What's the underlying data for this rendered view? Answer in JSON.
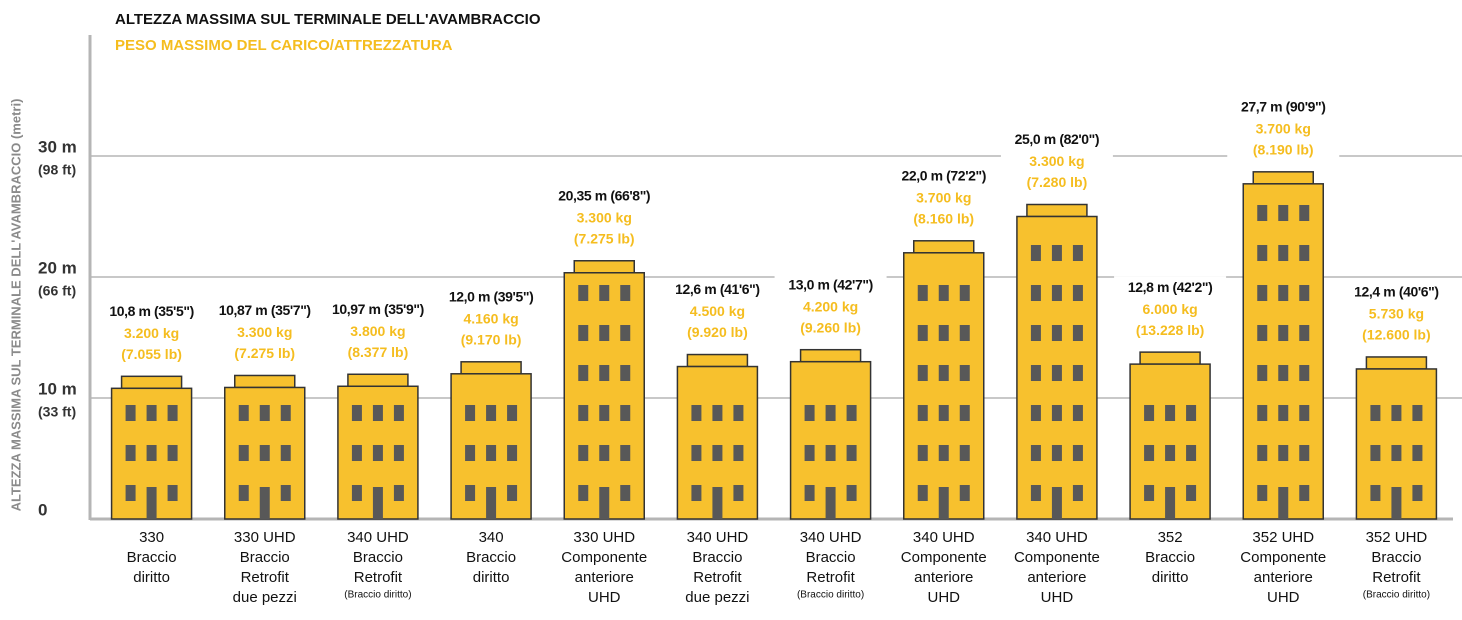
{
  "chart_data": {
    "type": "bar",
    "title": "ALTEZZA MASSIMA SUL TERMINALE DELL'AVAMBRACCIO",
    "subtitle": "PESO MASSIMO DEL CARICO/ATTREZZATURA",
    "y_label": "ALTEZZA MASSIMA SUL TERMINALE DELL'AVAMBRACCIO (metri)",
    "categories": [
      [
        "330",
        "Braccio",
        "diritto"
      ],
      [
        "330 UHD",
        "Braccio",
        "Retrofit",
        "due pezzi"
      ],
      [
        "340 UHD",
        "Braccio",
        "Retrofit",
        "(Braccio diritto)"
      ],
      [
        "340",
        "Braccio",
        "diritto"
      ],
      [
        "330 UHD",
        "Componente",
        "anteriore",
        "UHD"
      ],
      [
        "340 UHD",
        "Braccio",
        "Retrofit",
        "due pezzi"
      ],
      [
        "340 UHD",
        "Braccio",
        "Retrofit",
        "(Braccio diritto)"
      ],
      [
        "340 UHD",
        "Componente",
        "anteriore",
        "UHD"
      ],
      [
        "340 UHD",
        "Componente",
        "anteriore",
        "UHD"
      ],
      [
        "352",
        "Braccio",
        "diritto"
      ],
      [
        "352 UHD",
        "Componente",
        "anteriore",
        "UHD"
      ],
      [
        "352 UHD",
        "Braccio",
        "Retrofit",
        "(Braccio diritto)"
      ]
    ],
    "values": [
      10.8,
      10.87,
      10.97,
      12.0,
      20.35,
      12.6,
      13.0,
      22.0,
      25.0,
      12.8,
      27.7,
      12.4
    ],
    "value_labels": [
      "10,8 m (35'5\")",
      "10,87 m (35'7\")",
      "10,97 m (35'9\")",
      "12,0 m (39'5\")",
      "20,35 m (66'8\")",
      "12,6 m (41'6\")",
      "13,0 m (42'7\")",
      "22,0 m (72'2\")",
      "25,0 m (82'0\")",
      "12,8 m (42'2\")",
      "27,7 m (90'9\")",
      "12,4 m (40'6\")"
    ],
    "load_kg": [
      "3.200 kg",
      "3.300 kg",
      "3.800 kg",
      "4.160 kg",
      "3.300 kg",
      "4.500 kg",
      "4.200 kg",
      "3.700 kg",
      "3.300 kg",
      "6.000 kg",
      "3.700 kg",
      "5.730 kg"
    ],
    "load_lb": [
      "(7.055 lb)",
      "(7.275 lb)",
      "(8.377 lb)",
      "(9.170 lb)",
      "(7.275 lb)",
      "(9.920 lb)",
      "(9.260 lb)",
      "(8.160 lb)",
      "(7.280 lb)",
      "(13.228 lb)",
      "(8.190 lb)",
      "(12.600 lb)"
    ],
    "color": "#f7c12e",
    "ylim": [
      0,
      40
    ],
    "yticks": [
      0,
      {
        "value": 10,
        "label": "10 m"
      },
      {
        "value": 20,
        "label": "20 m"
      },
      {
        "value": 30,
        "label": "30 m"
      }
    ],
    "ytick_feet": [
      null,
      "(33 ft)",
      "(66 ft)",
      "(98 ft)"
    ],
    "grid": true
  }
}
